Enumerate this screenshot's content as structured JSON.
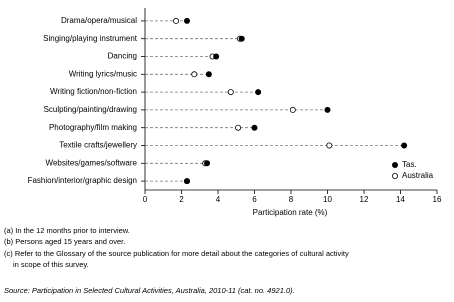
{
  "chart_data": {
    "type": "dot",
    "categories": [
      "Drama/opera/musical",
      "Singing/playing instrument",
      "Dancing",
      "Writing lyrics/music",
      "Writing fiction/non-fiction",
      "Sculpting/painting/drawing",
      "Photography/film making",
      "Textile crafts/jewellery",
      "Websites/games/software",
      "Fashion/interior/graphic design"
    ],
    "series": [
      {
        "name": "Tas.",
        "color": "#000000",
        "values": [
          2.3,
          5.3,
          3.9,
          3.5,
          6.2,
          10.0,
          6.0,
          14.2,
          3.4,
          2.3
        ]
      },
      {
        "name": "Australia",
        "color": "#ffffff",
        "values": [
          1.7,
          5.2,
          3.7,
          2.7,
          4.7,
          8.1,
          5.1,
          10.1,
          3.3,
          2.3
        ]
      }
    ],
    "xlabel": "Participation rate (%)",
    "xlim": [
      0,
      16
    ],
    "xticks": [
      0,
      2,
      4,
      6,
      8,
      10,
      12,
      14,
      16
    ],
    "legend": "lower right"
  },
  "notes": [
    "(a) In the 12 months prior to interview.",
    "(b) Persons aged 15 years and over.",
    "(c) Refer to the Glossary of the source publication for more detail about the categories of cultural activity",
    "in scope of this survey."
  ],
  "source": "Source: Participation in Selected Cultural Activities, Australia, 2010-11 (cat. no. 4921.0)."
}
